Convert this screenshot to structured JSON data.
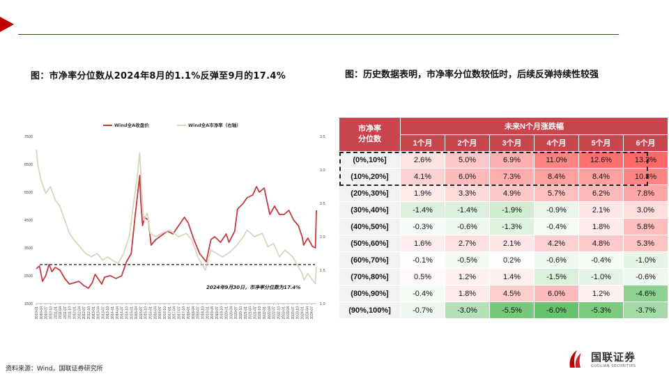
{
  "header": {
    "left_title": "图：市净率分位数从2024年8月的1.1%反弹至9月的17.4%",
    "right_title": "图：历史数据表明，市净率分位数较低时，后续反弹持续性较强"
  },
  "colors": {
    "accent": "#c00000",
    "price_line": "#c0393b",
    "pb_line": "#d8d4bd",
    "table_header": "#c9454e"
  },
  "chart_data": {
    "type": "line",
    "legend": [
      "Wind全A收盘价",
      "Wind全A市净率（右轴）"
    ],
    "legend_placement": "top-center",
    "annotation": "2024年9月30日，市净率分位数为17.4%",
    "reference_line_label": "",
    "y_left": {
      "ticks": [
        "7500",
        "6500",
        "5500",
        "4500",
        "3500",
        "2500",
        "1500"
      ],
      "range": [
        1500,
        7500
      ]
    },
    "y_right": {
      "ticks": [
        "3.5",
        "3.0",
        "2.5",
        "2.0",
        "1.5",
        "1.0"
      ],
      "range": [
        1.0,
        3.5
      ]
    },
    "reference_value": 2900,
    "x_ticks": [
      "2010-01",
      "2010-04",
      "2010-07",
      "2010-10",
      "2011-01",
      "2011-04",
      "2011-07",
      "2011-10",
      "2012-01",
      "2012-04",
      "2012-07",
      "2012-10",
      "2013-01",
      "2013-04",
      "2013-07",
      "2013-10",
      "2014-01",
      "2014-04",
      "2014-07",
      "2014-10",
      "2015-01",
      "2015-04",
      "2015-07",
      "2015-10",
      "2016-01",
      "2016-04",
      "2016-07",
      "2016-10",
      "2017-01",
      "2017-04",
      "2017-07",
      "2017-10",
      "2018-01",
      "2018-04",
      "2018-07",
      "2018-10",
      "2019-01",
      "2019-04",
      "2019-07",
      "2019-10",
      "2020-01",
      "2020-04",
      "2020-07",
      "2020-10",
      "2021-01",
      "2021-04",
      "2021-07",
      "2021-10",
      "2022-01",
      "2022-04",
      "2022-07",
      "2022-10",
      "2023-01",
      "2023-04",
      "2023-07",
      "2023-10",
      "2024-01",
      "2024-04",
      "2024-07"
    ],
    "series": [
      {
        "name": "Wind全A收盘价",
        "axis": "left",
        "t": [
          2010.0,
          2010.17,
          2010.33,
          2010.5,
          2010.67,
          2010.83,
          2011.0,
          2011.25,
          2011.5,
          2011.75,
          2012.0,
          2012.25,
          2012.5,
          2012.75,
          2012.95,
          2013.1,
          2013.45,
          2013.6,
          2013.9,
          2014.2,
          2014.5,
          2014.75,
          2015.0,
          2015.2,
          2015.45,
          2015.5,
          2015.6,
          2015.7,
          2015.9,
          2016.05,
          2016.3,
          2016.6,
          2016.9,
          2017.2,
          2017.5,
          2017.8,
          2018.0,
          2018.3,
          2018.6,
          2018.95,
          2019.2,
          2019.4,
          2019.7,
          2020.0,
          2020.15,
          2020.45,
          2020.6,
          2020.9,
          2021.1,
          2021.4,
          2021.6,
          2021.75,
          2022.0,
          2022.3,
          2022.55,
          2022.8,
          2023.05,
          2023.3,
          2023.55,
          2023.8,
          2024.0,
          2024.08,
          2024.3,
          2024.55,
          2024.7,
          2024.75
        ],
        "values": [
          2750,
          2850,
          2300,
          2500,
          2900,
          2650,
          2800,
          2700,
          2400,
          2200,
          2250,
          2300,
          2150,
          2050,
          2250,
          2550,
          2200,
          2450,
          2500,
          2400,
          2500,
          3000,
          3300,
          4600,
          6100,
          5200,
          4300,
          4600,
          4500,
          3600,
          3800,
          3950,
          4100,
          4000,
          4300,
          4600,
          4400,
          3800,
          3300,
          3000,
          3800,
          3900,
          3700,
          4000,
          3700,
          4100,
          4900,
          5100,
          5300,
          5400,
          5700,
          5500,
          5650,
          4700,
          5000,
          4700,
          4700,
          4850,
          4500,
          4300,
          3900,
          3600,
          3850,
          3550,
          3500,
          4850
        ]
      },
      {
        "name": "Wind全A市净率（右轴）",
        "axis": "right",
        "t": [
          2010.0,
          2010.1,
          2010.25,
          2010.5,
          2010.75,
          2011.0,
          2011.25,
          2011.5,
          2011.75,
          2012.0,
          2012.3,
          2012.6,
          2012.9,
          2013.2,
          2013.5,
          2013.75,
          2014.0,
          2014.3,
          2014.6,
          2014.9,
          2015.1,
          2015.3,
          2015.45,
          2015.55,
          2015.65,
          2015.85,
          2016.0,
          2016.3,
          2016.6,
          2017.0,
          2017.5,
          2017.9,
          2018.2,
          2018.5,
          2018.9,
          2019.2,
          2019.5,
          2019.8,
          2020.1,
          2020.5,
          2020.9,
          2021.1,
          2021.5,
          2021.9,
          2022.2,
          2022.5,
          2022.8,
          2023.1,
          2023.5,
          2023.8,
          2024.0,
          2024.1,
          2024.3,
          2024.55,
          2024.7,
          2024.75
        ],
        "values": [
          3.3,
          3.05,
          2.85,
          2.65,
          2.75,
          2.55,
          2.45,
          2.25,
          2.05,
          1.95,
          1.85,
          1.75,
          1.7,
          1.75,
          1.65,
          1.7,
          1.65,
          1.6,
          1.75,
          2.0,
          2.45,
          2.85,
          3.25,
          2.7,
          2.25,
          2.35,
          2.05,
          2.0,
          2.05,
          2.1,
          2.0,
          2.05,
          1.95,
          1.7,
          1.5,
          1.8,
          1.75,
          1.7,
          1.75,
          1.85,
          2.0,
          2.1,
          2.0,
          2.05,
          1.85,
          1.9,
          1.7,
          1.8,
          1.7,
          1.55,
          1.45,
          1.35,
          1.45,
          1.35,
          1.3,
          1.55
        ]
      }
    ]
  },
  "table": {
    "row_header_label": "市净率分位数",
    "group_header": "未来N个月涨跌幅",
    "months": [
      "1个月",
      "2个月",
      "3个月",
      "4个月",
      "5个月",
      "6个月"
    ],
    "rows": [
      {
        "label": "(0%,10%]",
        "values": [
          "2.6%",
          "5.0%",
          "6.9%",
          "11.0%",
          "12.6%",
          "13.3%"
        ]
      },
      {
        "label": "(10%,20%]",
        "values": [
          "4.1%",
          "6.0%",
          "7.3%",
          "8.4%",
          "8.4%",
          "10.8%"
        ]
      },
      {
        "label": "(20%,30%]",
        "values": [
          "1.9%",
          "3.3%",
          "4.9%",
          "5.7%",
          "6.2%",
          "7.8%"
        ]
      },
      {
        "label": "(30%,40%]",
        "values": [
          "-1.4%",
          "-1.4%",
          "-1.9%",
          "-0.9%",
          "2.1%",
          "3.0%"
        ]
      },
      {
        "label": "(40%,50%]",
        "values": [
          "-0.3%",
          "-0.6%",
          "-1.3%",
          "-0.4%",
          "1.8%",
          "5.8%"
        ]
      },
      {
        "label": "(50%,60%]",
        "values": [
          "1.6%",
          "2.7%",
          "2.1%",
          "4.2%",
          "4.8%",
          "5.3%"
        ]
      },
      {
        "label": "(60%,70%]",
        "values": [
          "-0.1%",
          "-0.5%",
          "0.2%",
          "-0.6%",
          "-0.4%",
          "-1.0%"
        ]
      },
      {
        "label": "(70%,80%]",
        "values": [
          "0.5%",
          "1.2%",
          "1.4%",
          "-1.5%",
          "-1.0%",
          "-0.6%"
        ]
      },
      {
        "label": "(80%,90%]",
        "values": [
          "-0.4%",
          "1.8%",
          "4.5%",
          "6.0%",
          "1.2%",
          "-4.6%"
        ]
      },
      {
        "label": "(90%,100%]",
        "values": [
          "-0.7%",
          "-3.0%",
          "-5.5%",
          "-6.0%",
          "-5.3%",
          "-3.7%"
        ]
      }
    ]
  },
  "footer": {
    "source": "资料来源：Wind，国联证券研究所"
  },
  "logo": {
    "cn": "国联证券",
    "en": "GUOLIAN SECURITIES"
  }
}
